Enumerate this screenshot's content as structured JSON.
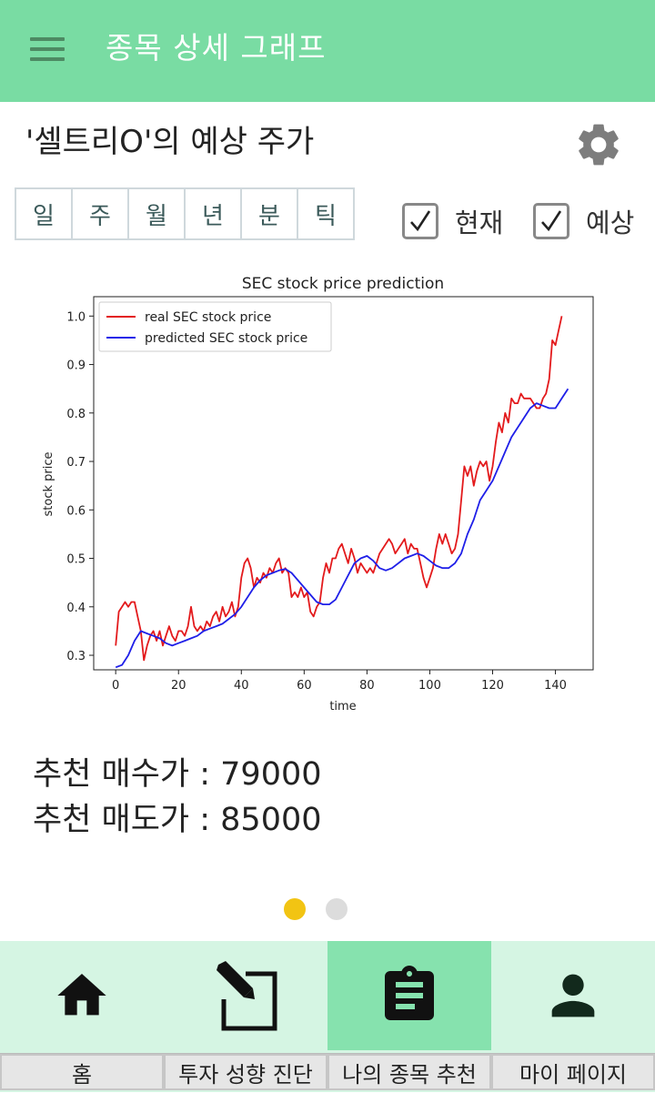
{
  "appbar": {
    "title": "종목 상세 그래프"
  },
  "stock": {
    "heading": "'셀트리O'의 예상 주가"
  },
  "period_tabs": [
    "일",
    "주",
    "월",
    "년",
    "분",
    "틱"
  ],
  "toggles": [
    {
      "label": "현재",
      "checked": true
    },
    {
      "label": "예상",
      "checked": true
    }
  ],
  "recommendation": {
    "buy": "추천 매수가 : 79000",
    "sell": "추천 매도가 : 85000"
  },
  "pager": {
    "count": 2,
    "active_index": 0,
    "active_color": "#f2c413",
    "inactive_color": "#dcdcdc"
  },
  "bottom_nav": {
    "tabs": [
      {
        "icon": "home-icon",
        "label": "홈"
      },
      {
        "icon": "edit-icon",
        "label": "투자 성향 진단"
      },
      {
        "icon": "clipboard-icon",
        "label": "나의 종목 추천"
      },
      {
        "icon": "person-icon",
        "label": "마이 페이지"
      }
    ],
    "active_index": 2
  },
  "colors": {
    "appbar": "#79dca3",
    "nav_bg": "#d5f5e3",
    "nav_active": "#86e2ae"
  },
  "chart_data": {
    "type": "line",
    "title": "SEC stock price prediction",
    "xlabel": "time",
    "ylabel": "stock price",
    "xlim": [
      -7,
      152
    ],
    "ylim": [
      0.27,
      1.04
    ],
    "xticks": [
      0,
      20,
      40,
      60,
      80,
      100,
      120,
      140
    ],
    "yticks": [
      0.3,
      0.4,
      0.5,
      0.6,
      0.7,
      0.8,
      0.9,
      1.0
    ],
    "legend": "top-left",
    "series": [
      {
        "name": "real SEC stock price",
        "color": "#e31a1c",
        "points": [
          [
            0,
            0.32
          ],
          [
            1,
            0.39
          ],
          [
            2,
            0.4
          ],
          [
            3,
            0.41
          ],
          [
            4,
            0.4
          ],
          [
            5,
            0.41
          ],
          [
            6,
            0.41
          ],
          [
            7,
            0.38
          ],
          [
            8,
            0.35
          ],
          [
            9,
            0.29
          ],
          [
            10,
            0.32
          ],
          [
            11,
            0.34
          ],
          [
            12,
            0.35
          ],
          [
            13,
            0.33
          ],
          [
            14,
            0.35
          ],
          [
            15,
            0.32
          ],
          [
            16,
            0.34
          ],
          [
            17,
            0.36
          ],
          [
            18,
            0.34
          ],
          [
            19,
            0.33
          ],
          [
            20,
            0.35
          ],
          [
            21,
            0.35
          ],
          [
            22,
            0.34
          ],
          [
            23,
            0.36
          ],
          [
            24,
            0.4
          ],
          [
            25,
            0.36
          ],
          [
            26,
            0.35
          ],
          [
            27,
            0.36
          ],
          [
            28,
            0.35
          ],
          [
            29,
            0.37
          ],
          [
            30,
            0.36
          ],
          [
            31,
            0.38
          ],
          [
            32,
            0.39
          ],
          [
            33,
            0.37
          ],
          [
            34,
            0.4
          ],
          [
            35,
            0.38
          ],
          [
            36,
            0.39
          ],
          [
            37,
            0.41
          ],
          [
            38,
            0.38
          ],
          [
            39,
            0.4
          ],
          [
            40,
            0.46
          ],
          [
            41,
            0.49
          ],
          [
            42,
            0.5
          ],
          [
            43,
            0.48
          ],
          [
            44,
            0.44
          ],
          [
            45,
            0.46
          ],
          [
            46,
            0.45
          ],
          [
            47,
            0.47
          ],
          [
            48,
            0.46
          ],
          [
            49,
            0.48
          ],
          [
            50,
            0.47
          ],
          [
            51,
            0.49
          ],
          [
            52,
            0.5
          ],
          [
            53,
            0.47
          ],
          [
            54,
            0.48
          ],
          [
            55,
            0.47
          ],
          [
            56,
            0.42
          ],
          [
            57,
            0.43
          ],
          [
            58,
            0.42
          ],
          [
            59,
            0.44
          ],
          [
            60,
            0.42
          ],
          [
            61,
            0.43
          ],
          [
            62,
            0.39
          ],
          [
            63,
            0.38
          ],
          [
            64,
            0.4
          ],
          [
            65,
            0.41
          ],
          [
            66,
            0.46
          ],
          [
            67,
            0.49
          ],
          [
            68,
            0.47
          ],
          [
            69,
            0.5
          ],
          [
            70,
            0.5
          ],
          [
            71,
            0.52
          ],
          [
            72,
            0.53
          ],
          [
            73,
            0.51
          ],
          [
            74,
            0.49
          ],
          [
            75,
            0.52
          ],
          [
            76,
            0.5
          ],
          [
            77,
            0.47
          ],
          [
            78,
            0.49
          ],
          [
            79,
            0.48
          ],
          [
            80,
            0.47
          ],
          [
            81,
            0.48
          ],
          [
            82,
            0.47
          ],
          [
            83,
            0.49
          ],
          [
            84,
            0.51
          ],
          [
            85,
            0.52
          ],
          [
            86,
            0.53
          ],
          [
            87,
            0.54
          ],
          [
            88,
            0.53
          ],
          [
            89,
            0.51
          ],
          [
            90,
            0.52
          ],
          [
            91,
            0.53
          ],
          [
            92,
            0.54
          ],
          [
            93,
            0.51
          ],
          [
            94,
            0.53
          ],
          [
            95,
            0.52
          ],
          [
            96,
            0.52
          ],
          [
            97,
            0.49
          ],
          [
            98,
            0.46
          ],
          [
            99,
            0.44
          ],
          [
            100,
            0.46
          ],
          [
            101,
            0.48
          ],
          [
            102,
            0.52
          ],
          [
            103,
            0.55
          ],
          [
            104,
            0.53
          ],
          [
            105,
            0.55
          ],
          [
            106,
            0.53
          ],
          [
            107,
            0.51
          ],
          [
            108,
            0.52
          ],
          [
            109,
            0.55
          ],
          [
            110,
            0.62
          ],
          [
            111,
            0.69
          ],
          [
            112,
            0.67
          ],
          [
            113,
            0.69
          ],
          [
            114,
            0.65
          ],
          [
            115,
            0.68
          ],
          [
            116,
            0.7
          ],
          [
            117,
            0.69
          ],
          [
            118,
            0.7
          ],
          [
            119,
            0.66
          ],
          [
            120,
            0.69
          ],
          [
            121,
            0.74
          ],
          [
            122,
            0.78
          ],
          [
            123,
            0.76
          ],
          [
            124,
            0.8
          ],
          [
            125,
            0.78
          ],
          [
            126,
            0.83
          ],
          [
            127,
            0.82
          ],
          [
            128,
            0.82
          ],
          [
            129,
            0.84
          ],
          [
            130,
            0.83
          ],
          [
            131,
            0.83
          ],
          [
            132,
            0.83
          ],
          [
            133,
            0.82
          ],
          [
            134,
            0.81
          ],
          [
            135,
            0.81
          ],
          [
            136,
            0.83
          ],
          [
            137,
            0.84
          ],
          [
            138,
            0.87
          ],
          [
            139,
            0.95
          ],
          [
            140,
            0.94
          ],
          [
            141,
            0.97
          ],
          [
            142,
            1.0
          ]
        ]
      },
      {
        "name": "predicted SEC stock price",
        "color": "#1f1fe8",
        "points": [
          [
            0,
            0.275
          ],
          [
            2,
            0.28
          ],
          [
            4,
            0.3
          ],
          [
            6,
            0.33
          ],
          [
            8,
            0.35
          ],
          [
            10,
            0.345
          ],
          [
            12,
            0.34
          ],
          [
            14,
            0.335
          ],
          [
            16,
            0.325
          ],
          [
            18,
            0.32
          ],
          [
            20,
            0.325
          ],
          [
            22,
            0.33
          ],
          [
            24,
            0.335
          ],
          [
            26,
            0.34
          ],
          [
            28,
            0.35
          ],
          [
            30,
            0.355
          ],
          [
            32,
            0.36
          ],
          [
            34,
            0.365
          ],
          [
            36,
            0.375
          ],
          [
            38,
            0.385
          ],
          [
            40,
            0.4
          ],
          [
            42,
            0.42
          ],
          [
            44,
            0.44
          ],
          [
            46,
            0.455
          ],
          [
            48,
            0.465
          ],
          [
            50,
            0.47
          ],
          [
            52,
            0.475
          ],
          [
            54,
            0.478
          ],
          [
            56,
            0.47
          ],
          [
            58,
            0.455
          ],
          [
            60,
            0.44
          ],
          [
            62,
            0.425
          ],
          [
            64,
            0.41
          ],
          [
            66,
            0.405
          ],
          [
            68,
            0.405
          ],
          [
            70,
            0.415
          ],
          [
            72,
            0.44
          ],
          [
            74,
            0.465
          ],
          [
            76,
            0.49
          ],
          [
            78,
            0.5
          ],
          [
            80,
            0.505
          ],
          [
            82,
            0.495
          ],
          [
            84,
            0.48
          ],
          [
            86,
            0.475
          ],
          [
            88,
            0.48
          ],
          [
            90,
            0.49
          ],
          [
            92,
            0.5
          ],
          [
            94,
            0.505
          ],
          [
            96,
            0.51
          ],
          [
            98,
            0.505
          ],
          [
            100,
            0.495
          ],
          [
            102,
            0.485
          ],
          [
            104,
            0.48
          ],
          [
            106,
            0.48
          ],
          [
            108,
            0.49
          ],
          [
            110,
            0.51
          ],
          [
            112,
            0.55
          ],
          [
            114,
            0.58
          ],
          [
            116,
            0.62
          ],
          [
            118,
            0.64
          ],
          [
            120,
            0.66
          ],
          [
            122,
            0.69
          ],
          [
            124,
            0.72
          ],
          [
            126,
            0.75
          ],
          [
            128,
            0.77
          ],
          [
            130,
            0.79
          ],
          [
            132,
            0.81
          ],
          [
            134,
            0.82
          ],
          [
            136,
            0.815
          ],
          [
            138,
            0.81
          ],
          [
            140,
            0.81
          ],
          [
            142,
            0.83
          ],
          [
            144,
            0.85
          ]
        ]
      }
    ]
  }
}
